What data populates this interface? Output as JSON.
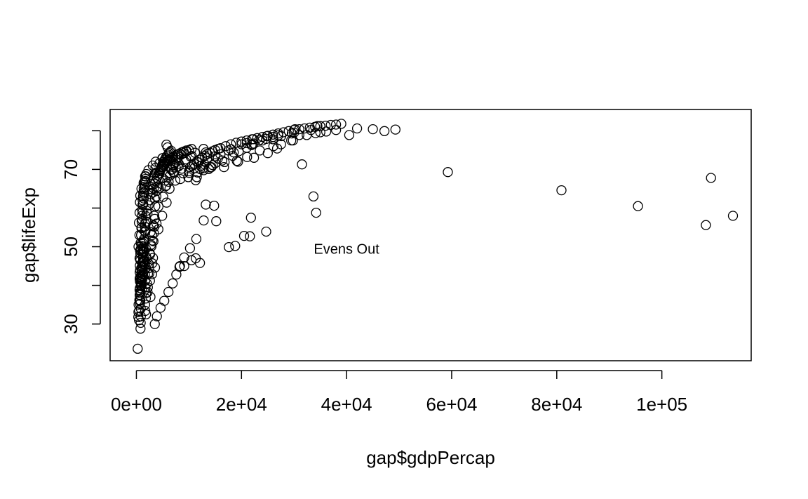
{
  "chart_data": {
    "type": "scatter",
    "title": "",
    "xlabel": "gap$gdpPercap",
    "ylabel": "gap$lifeExp",
    "xlim": [
      -5000,
      117000
    ],
    "ylim": [
      20.5,
      85.5
    ],
    "x_ticks": [
      0,
      20000,
      40000,
      60000,
      80000,
      100000
    ],
    "x_tick_labels": [
      "0e+00",
      "2e+04",
      "4e+04",
      "6e+04",
      "8e+04",
      "1e+05"
    ],
    "y_ticks": [
      30,
      40,
      50,
      60,
      70,
      80
    ],
    "y_tick_labels": [
      "30",
      "",
      "50",
      "",
      "70",
      ""
    ],
    "grid": false,
    "marker": "open-circle",
    "annotation": {
      "text": "Evens Out",
      "x": 40000,
      "y": 49.5
    },
    "x": [
      779,
      820,
      853,
      836,
      740,
      786,
      978,
      852,
      649,
      635,
      727,
      975,
      1601,
      1942,
      2313,
      2760,
      3313,
      3533,
      3631,
      3674,
      4402,
      5000,
      5938,
      5724,
      2449,
      3014,
      2551,
      3247,
      4183,
      4910,
      5745,
      5681,
      5023,
      3773,
      5289,
      6223,
      3521,
      3828,
      4269,
      5523,
      5473,
      5694,
      6630,
      8046,
      9314,
      10330,
      11150,
      12780,
      10040,
      11000,
      12220,
      14530,
      16790,
      18330,
      19480,
      21890,
      23420,
      26990,
      30190,
      34440,
      6137,
      8343,
      10010,
      12130,
      16670,
      19110,
      21070,
      23480,
      26070,
      29470,
      32420,
      36130,
      9867,
      11640,
      12750,
      13780,
      14280,
      19340,
      22380,
      25000,
      26780,
      27530,
      29800,
      34080,
      684,
      662,
      686,
      721,
      630,
      660,
      677,
      751,
      838,
      973,
      1136,
      1391,
      1062,
      960,
      949,
      1036,
      1085,
      1029,
      1278,
      1226,
      1191,
      1232,
      1373,
      1441,
      2677,
      2128,
      2180,
      2586,
      2980,
      3548,
      3157,
      2881,
      3044,
      3326,
      3413,
      3822,
      1828,
      1683,
      1660,
      1795,
      1863,
      1710,
      1680,
      1610,
      1625,
      1610,
      1480,
      1450,
      400,
      576,
      487,
      612,
      676,
      741,
      962,
      1379,
      1656,
      2289,
      3119,
      4959,
      2420,
      2000,
      1900,
      1650,
      1200,
      1100,
      880,
      620,
      420,
      388,
      361,
      241,
      6418,
      7115,
      7478,
      6970,
      8050,
      9442,
      10520,
      13230,
      15580,
      20010,
      22240,
      24840,
      7029,
      8663,
      10560,
      12999,
      16310,
      18520,
      20990,
      22300,
      24700,
      27560,
      29590,
      33200,
      11280,
      11500,
      12800,
      14100,
      15000,
      15500,
      16000,
      18000,
      21000,
      24000,
      26000,
      30000,
      1200,
      1800,
      2700,
      3500,
      4200,
      5100,
      6300,
      7400,
      8900,
      10200,
      11800,
      13500,
      15000,
      17500,
      22000,
      26000,
      31000,
      35000,
      38000,
      42000,
      45000,
      47200,
      49300,
      40500,
      700,
      900,
      1100,
      1300,
      1500,
      1700,
      1900,
      2100,
      2300,
      2500,
      2700,
      2900,
      3100,
      3300,
      3500,
      3700,
      3900,
      4100,
      4300,
      4500,
      4700,
      4900,
      5100,
      5300,
      5500,
      5800,
      6100,
      6400,
      6700,
      7000,
      7400,
      7800,
      8200,
      8600,
      9000,
      9500,
      500,
      520,
      560,
      600,
      650,
      700,
      750,
      800,
      850,
      900,
      950,
      1000,
      1050,
      1100,
      1150,
      1200,
      1250,
      1300,
      1400,
      1500,
      1600,
      1700,
      1800,
      1900,
      2000,
      2200,
      2400,
      2600,
      2800,
      3000,
      3200,
      3400,
      3600,
      3800,
      4000,
      4200,
      4400,
      4600,
      4800,
      5000,
      5200,
      5400,
      5600,
      5800,
      6000,
      6200,
      6400,
      6600,
      6800,
      7000,
      7200,
      7400,
      7600,
      7800,
      8000,
      8500,
      9000,
      9500,
      10000,
      10500,
      11000,
      11500,
      12000,
      12500,
      13000,
      13500,
      14000,
      14500,
      15000,
      16000,
      17000,
      18000,
      19000,
      20000,
      21000,
      22000,
      23000,
      24000,
      25000,
      26000,
      27000,
      28000,
      29000,
      30000,
      31000,
      32000,
      33000,
      34000,
      35000,
      36000,
      37000,
      38000,
      39000,
      59265,
      80894,
      95458,
      108382,
      109348,
      113523,
      17600,
      18800,
      20500,
      21600,
      21800,
      24700,
      33700,
      34200,
      31500,
      8200,
      9100,
      10500,
      11300,
      12100,
      14800,
      15200,
      12800,
      13200,
      3500,
      3900,
      4600,
      5300,
      6100,
      6900,
      7600,
      8300,
      9100,
      10200,
      11400,
      600,
      700,
      800,
      900,
      1000,
      1100,
      1200,
      1300,
      1400,
      1500,
      1600,
      1700,
      650,
      750,
      850,
      950,
      1050,
      1150,
      1250,
      1350,
      1450,
      1550,
      1650,
      1750
    ],
    "y": [
      28.8,
      30.3,
      32.0,
      34.0,
      36.1,
      38.4,
      39.9,
      40.8,
      41.7,
      41.8,
      42.1,
      43.8,
      55.2,
      59.3,
      64.8,
      66.2,
      67.7,
      68.9,
      70.4,
      72.0,
      71.6,
      72.9,
      75.7,
      76.4,
      43.1,
      45.7,
      48.3,
      51.4,
      54.5,
      58.0,
      61.4,
      65.8,
      67.7,
      69.2,
      71.0,
      72.3,
      62.5,
      64.4,
      65.1,
      65.6,
      67.1,
      68.5,
      69.9,
      70.8,
      71.9,
      73.3,
      74.3,
      75.3,
      69.1,
      70.3,
      70.9,
      71.1,
      71.9,
      73.5,
      74.7,
      76.3,
      77.6,
      78.8,
      80.4,
      81.2,
      66.8,
      67.5,
      69.5,
      70.1,
      70.6,
      72.2,
      73.2,
      74.9,
      76.0,
      77.5,
      78.9,
      79.8,
      68.0,
      69.2,
      70.3,
      70.1,
      70.6,
      72.0,
      73.0,
      74.2,
      75.4,
      76.5,
      77.5,
      79.4,
      37.5,
      39.3,
      41.0,
      42.2,
      43.4,
      45.1,
      47.0,
      48.2,
      49.4,
      50.2,
      51.0,
      51.5,
      39.0,
      40.5,
      41.3,
      42.5,
      43.8,
      44.8,
      46.3,
      47.3,
      48.6,
      49.5,
      48.8,
      48.6,
      37.0,
      38.2,
      39.5,
      41.2,
      42.9,
      44.6,
      47.1,
      50.1,
      51.6,
      53.5,
      55.2,
      56.0,
      32.5,
      33.4,
      35.0,
      36.6,
      38.0,
      39.5,
      41.2,
      42.8,
      44.1,
      45.5,
      46.0,
      46.2,
      50.0,
      53.0,
      56.2,
      58.8,
      61.5,
      63.2,
      65.0,
      66.5,
      68.2,
      69.8,
      71.0,
      72.9,
      44.5,
      46.8,
      47.3,
      45.1,
      43.0,
      41.4,
      39.8,
      37.5,
      35.0,
      33.1,
      31.8,
      23.6,
      68.4,
      69.1,
      70.5,
      71.1,
      71.5,
      72.6,
      73.5,
      74.4,
      75.3,
      76.5,
      77.8,
      78.6,
      69.4,
      70.2,
      70.9,
      71.3,
      72.3,
      74.4,
      75.6,
      76.7,
      77.9,
      78.6,
      79.3,
      80.2,
      67.2,
      68.0,
      69.8,
      70.5,
      71.6,
      72.8,
      73.9,
      75.2,
      76.8,
      77.5,
      78.4,
      79.5,
      45.0,
      49.5,
      53.8,
      57.2,
      60.4,
      62.9,
      65.0,
      67.1,
      69.0,
      70.6,
      71.8,
      72.9,
      73.4,
      74.9,
      76.5,
      77.8,
      78.9,
      79.6,
      80.2,
      80.6,
      80.4,
      79.9,
      80.3,
      78.9,
      35.2,
      40.1,
      44.6,
      48.0,
      51.2,
      53.9,
      56.5,
      58.6,
      60.7,
      62.0,
      63.6,
      64.8,
      64.0,
      65.1,
      66.3,
      67.0,
      67.8,
      68.4,
      69.0,
      69.6,
      70.1,
      70.6,
      71.1,
      71.5,
      71.8,
      72.2,
      72.5,
      72.8,
      73.0,
      73.3,
      73.6,
      73.9,
      74.1,
      74.4,
      74.6,
      74.9,
      31.0,
      33.5,
      36.2,
      38.8,
      41.5,
      44.0,
      46.5,
      49.0,
      51.0,
      53.0,
      54.8,
      56.5,
      58.0,
      59.5,
      60.8,
      62.0,
      63.0,
      64.0,
      65.0,
      66.0,
      66.8,
      67.5,
      68.2,
      68.8,
      40.5,
      43.0,
      45.5,
      48.0,
      50.5,
      53.0,
      55.5,
      58.0,
      60.5,
      63.0,
      65.5,
      67.5,
      69.0,
      70.0,
      70.8,
      71.4,
      72.0,
      72.5,
      73.0,
      73.4,
      73.8,
      74.2,
      74.5,
      74.8,
      70.0,
      71.0,
      71.5,
      72.0,
      72.5,
      73.0,
      73.3,
      73.8,
      74.2,
      74.6,
      75.0,
      75.3,
      71.5,
      72.0,
      72.5,
      73.0,
      73.5,
      74.0,
      74.3,
      74.7,
      75.0,
      75.5,
      76.0,
      76.5,
      76.9,
      77.2,
      77.5,
      77.8,
      78.1,
      78.4,
      78.7,
      79.0,
      79.3,
      79.6,
      79.9,
      80.2,
      80.4,
      80.6,
      80.8,
      81.0,
      81.2,
      81.3,
      81.5,
      81.6,
      81.8,
      69.3,
      64.6,
      60.5,
      55.6,
      67.8,
      58.0,
      49.9,
      50.2,
      52.8,
      52.7,
      57.5,
      53.9,
      63.0,
      58.8,
      71.3,
      44.8,
      45.0,
      46.5,
      47.0,
      45.8,
      60.6,
      56.6,
      56.8,
      60.9,
      30.0,
      32.0,
      34.2,
      36.0,
      38.3,
      40.5,
      42.8,
      45.0,
      47.2,
      49.6,
      52.0,
      47.0,
      49.0,
      51.0,
      53.0,
      55.0,
      57.0,
      59.0,
      61.0,
      62.5,
      64.0,
      65.5,
      67.0,
      36.0,
      38.0,
      40.0,
      42.0,
      44.0,
      46.0,
      48.0,
      50.0,
      52.0,
      54.0,
      56.0,
      58.0
    ]
  }
}
